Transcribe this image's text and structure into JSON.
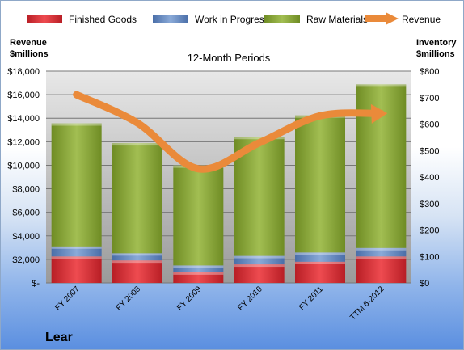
{
  "chart_data": {
    "type": "bar",
    "title": "12-Month Periods",
    "company": "Lear",
    "categories": [
      "FY 2007",
      "FY 2008",
      "FY 2009",
      "FY 2010",
      "FY 2011",
      "TTM 6-2012"
    ],
    "series": [
      {
        "name": "Finished Goods",
        "axis": "right",
        "stacked": true,
        "color": "#d42a30",
        "values": [
          100,
          85,
          40,
          70,
          80,
          100
        ]
      },
      {
        "name": "Work in Progress",
        "axis": "right",
        "stacked": true,
        "color": "#5f86c0",
        "values": [
          38,
          27,
          26,
          32,
          35,
          32
        ]
      },
      {
        "name": "Raw Materials",
        "axis": "right",
        "stacked": true,
        "color": "#8aa83a",
        "values": [
          465,
          416,
          378,
          450,
          518,
          618
        ]
      },
      {
        "name": "Revenue",
        "axis": "left",
        "type": "line",
        "color": "#ea8a3a",
        "values": [
          16000,
          13600,
          9700,
          11900,
          14200,
          14400
        ]
      }
    ],
    "ylabel_left": "Revenue\n$millions",
    "ylabel_right": "Inventory\n$millions",
    "ylim_left": [
      0,
      18000
    ],
    "ylim_right": [
      0,
      800
    ],
    "yticks_left": [
      "$-",
      "$2,000",
      "$4,000",
      "$6,000",
      "$8,000",
      "$10,000",
      "$12,000",
      "$14,000",
      "$16,000",
      "$18,000"
    ],
    "yticks_right": [
      "$0",
      "$100",
      "$200",
      "$300",
      "$400",
      "$500",
      "$600",
      "$700",
      "$800"
    ],
    "grid": true,
    "legend_position": "top"
  }
}
